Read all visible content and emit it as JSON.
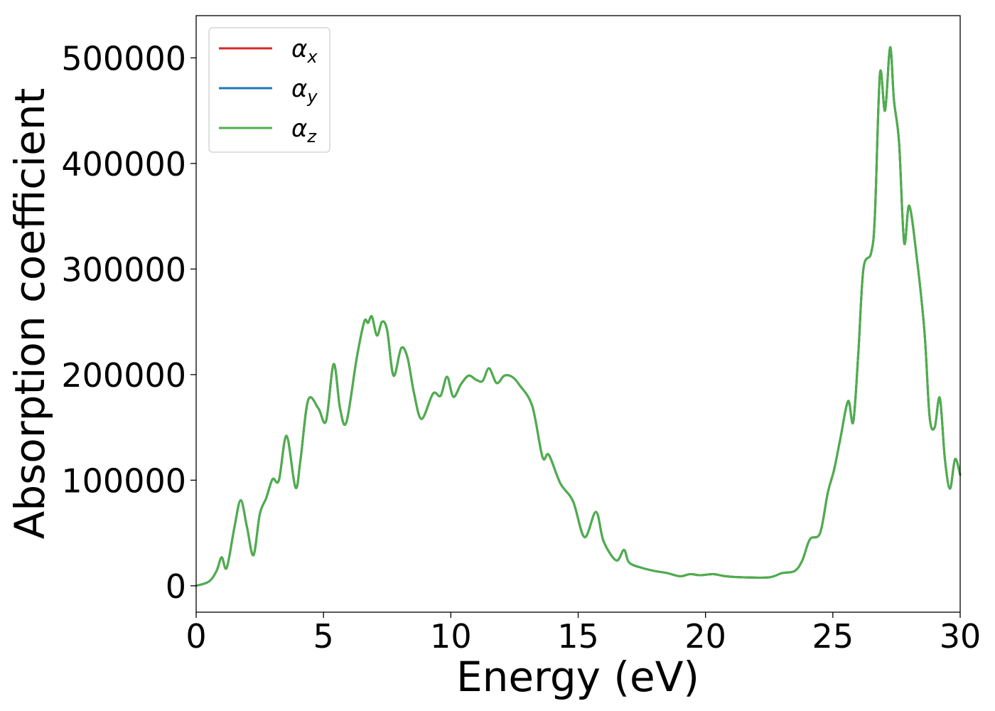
{
  "chart_data": {
    "type": "line",
    "title": "",
    "xlabel": "Energy (eV)",
    "ylabel": "Absorption coefficient",
    "xlim": [
      0,
      30
    ],
    "ylim": [
      -25000,
      540000
    ],
    "xticks": [
      0,
      5,
      10,
      15,
      20,
      25,
      30
    ],
    "xtick_labels": [
      "0",
      "5",
      "10",
      "15",
      "20",
      "25",
      "30"
    ],
    "yticks": [
      0,
      100000,
      200000,
      300000,
      400000,
      500000
    ],
    "ytick_labels": [
      "0",
      "100000",
      "200000",
      "300000",
      "400000",
      "500000"
    ],
    "grid": false,
    "legend_position": "top-left",
    "x": [
      0,
      0.5,
      0.8,
      1.0,
      1.2,
      1.5,
      1.75,
      2.0,
      2.25,
      2.5,
      2.75,
      3.0,
      3.25,
      3.55,
      3.9,
      4.1,
      4.4,
      4.8,
      5.1,
      5.4,
      5.65,
      5.9,
      6.3,
      6.6,
      6.75,
      6.9,
      7.1,
      7.3,
      7.5,
      7.75,
      8.05,
      8.3,
      8.55,
      8.85,
      9.3,
      9.6,
      9.85,
      10.1,
      10.4,
      10.7,
      11.0,
      11.25,
      11.5,
      11.8,
      12.1,
      12.4,
      12.7,
      13.2,
      13.6,
      13.85,
      14.3,
      14.8,
      15.25,
      15.7,
      16.0,
      16.5,
      16.8,
      17.0,
      17.5,
      18.0,
      18.5,
      19.0,
      19.4,
      19.8,
      20.3,
      20.8,
      21.5,
      22.5,
      23.0,
      23.5,
      23.8,
      24.1,
      24.5,
      24.8,
      25.05,
      25.3,
      25.6,
      25.8,
      26.0,
      26.2,
      26.5,
      26.65,
      26.85,
      27.05,
      27.25,
      27.4,
      27.6,
      27.8,
      28.0,
      28.3,
      28.6,
      28.8,
      29.0,
      29.2,
      29.4,
      29.6,
      29.8,
      30.0
    ],
    "series": [
      {
        "name": "α_x",
        "color": "#d62728",
        "values": [
          0,
          4000,
          14000,
          27000,
          17000,
          55000,
          81000,
          55000,
          29000,
          68000,
          83000,
          101000,
          100000,
          142000,
          93000,
          120000,
          176000,
          168000,
          156000,
          210000,
          168000,
          155000,
          215000,
          250000,
          249000,
          255000,
          237000,
          250000,
          242000,
          199000,
          225000,
          216000,
          183000,
          158000,
          182000,
          180000,
          198000,
          179000,
          191000,
          199000,
          195000,
          194000,
          206000,
          192000,
          199000,
          198000,
          190000,
          170000,
          122000,
          124000,
          97000,
          80000,
          46000,
          70000,
          42000,
          24000,
          34000,
          22000,
          17000,
          14000,
          12000,
          9000,
          11000,
          10000,
          11000,
          9000,
          8000,
          8000,
          12000,
          14000,
          24000,
          44000,
          50000,
          88000,
          110000,
          140000,
          175000,
          155000,
          220000,
          300000,
          315000,
          350000,
          485000,
          450000,
          510000,
          460000,
          420000,
          325000,
          360000,
          310000,
          240000,
          160000,
          150000,
          178000,
          120000,
          92000,
          120000,
          105000
        ]
      },
      {
        "name": "α_y",
        "color": "#1f77b4",
        "values": [
          0,
          4000,
          14000,
          27000,
          17000,
          55000,
          81000,
          55000,
          29000,
          68000,
          83000,
          101000,
          100000,
          142000,
          93000,
          120000,
          176000,
          168000,
          156000,
          210000,
          168000,
          155000,
          215000,
          250000,
          249000,
          255000,
          237000,
          250000,
          242000,
          199000,
          225000,
          216000,
          183000,
          158000,
          182000,
          180000,
          198000,
          179000,
          191000,
          199000,
          195000,
          194000,
          206000,
          192000,
          199000,
          198000,
          190000,
          170000,
          122000,
          124000,
          97000,
          80000,
          46000,
          70000,
          42000,
          24000,
          34000,
          22000,
          17000,
          14000,
          12000,
          9000,
          11000,
          10000,
          11000,
          9000,
          8000,
          8000,
          12000,
          14000,
          24000,
          44000,
          50000,
          88000,
          110000,
          140000,
          175000,
          155000,
          220000,
          300000,
          315000,
          350000,
          485000,
          450000,
          510000,
          460000,
          420000,
          325000,
          360000,
          310000,
          240000,
          160000,
          150000,
          178000,
          120000,
          92000,
          120000,
          105000
        ]
      },
      {
        "name": "α_z",
        "color": "#4daf4a",
        "values": [
          0,
          4000,
          14000,
          27000,
          17000,
          55000,
          81000,
          55000,
          29000,
          68000,
          83000,
          101000,
          100000,
          142000,
          93000,
          120000,
          176000,
          168000,
          156000,
          210000,
          168000,
          155000,
          215000,
          250000,
          249000,
          255000,
          237000,
          250000,
          242000,
          199000,
          225000,
          216000,
          183000,
          158000,
          182000,
          180000,
          198000,
          179000,
          191000,
          199000,
          195000,
          194000,
          206000,
          192000,
          199000,
          198000,
          190000,
          170000,
          122000,
          124000,
          97000,
          80000,
          46000,
          70000,
          42000,
          24000,
          34000,
          22000,
          17000,
          14000,
          12000,
          9000,
          11000,
          10000,
          11000,
          9000,
          8000,
          8000,
          12000,
          14000,
          24000,
          44000,
          50000,
          88000,
          110000,
          140000,
          175000,
          155000,
          220000,
          300000,
          315000,
          350000,
          485000,
          450000,
          510000,
          460000,
          420000,
          325000,
          360000,
          310000,
          240000,
          160000,
          150000,
          178000,
          120000,
          92000,
          120000,
          105000
        ]
      }
    ],
    "legend": [
      {
        "symbol": "α",
        "sub": "x",
        "color": "#d62728"
      },
      {
        "symbol": "α",
        "sub": "y",
        "color": "#1f77b4"
      },
      {
        "symbol": "α",
        "sub": "z",
        "color": "#4daf4a"
      }
    ]
  }
}
